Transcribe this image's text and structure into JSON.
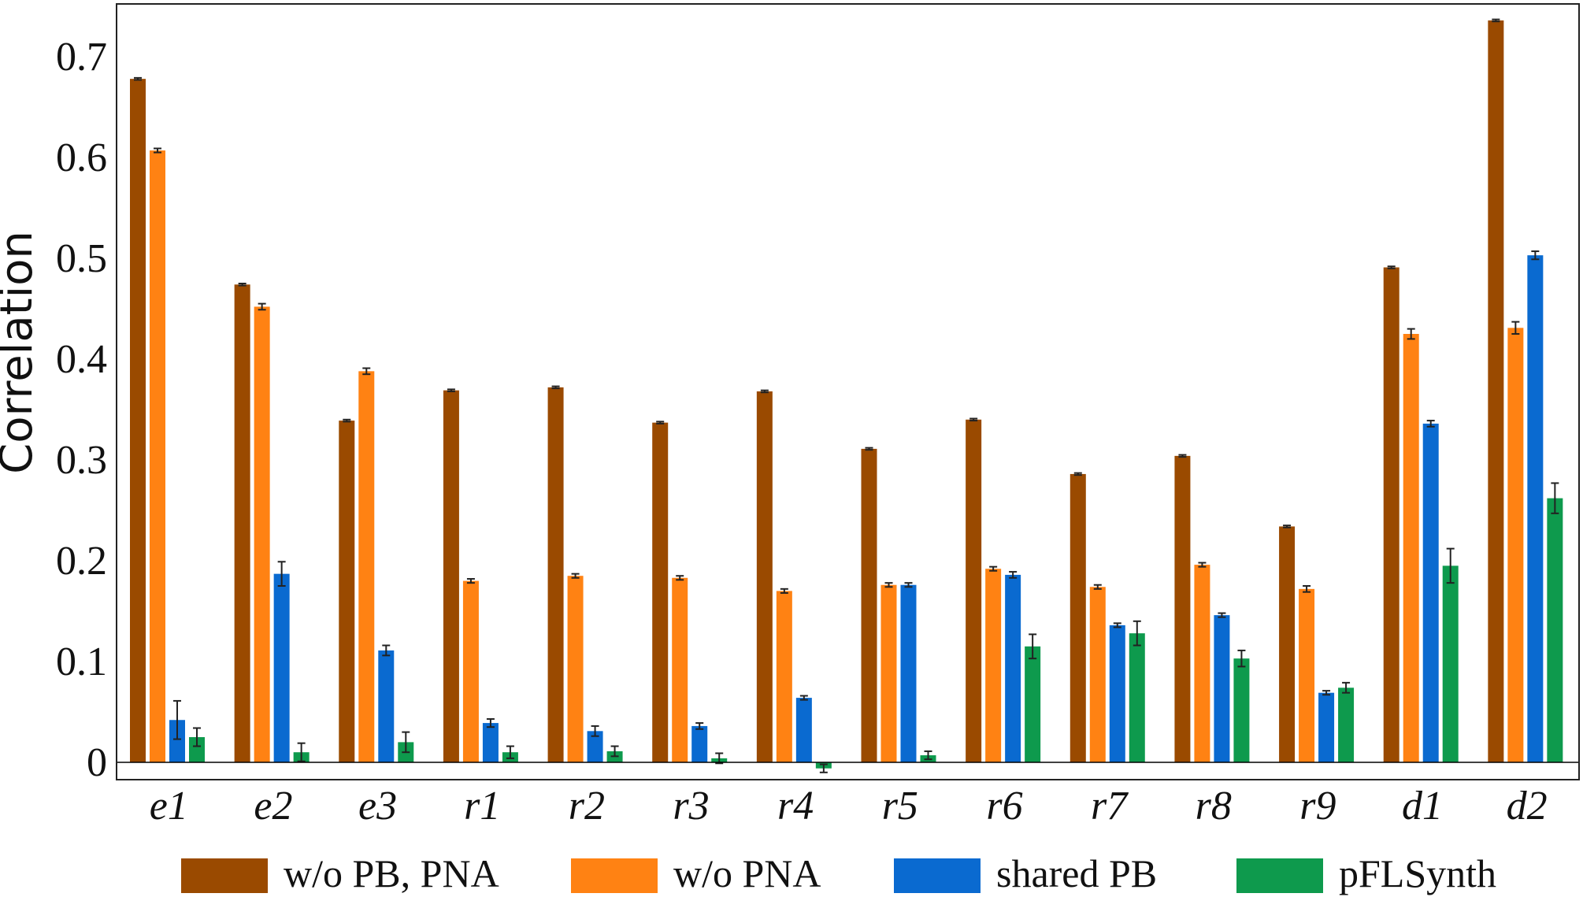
{
  "chart_data": {
    "type": "bar",
    "title": "",
    "xlabel": "",
    "ylabel": "Correlation",
    "ylim": [
      -0.02,
      0.75
    ],
    "yticks": [
      0,
      0.1,
      0.2,
      0.3,
      0.4,
      0.5,
      0.6,
      0.7
    ],
    "ytick_labels": [
      "0",
      "0.1",
      "0.2",
      "0.3",
      "0.4",
      "0.5",
      "0.6",
      "0.7"
    ],
    "grid": false,
    "legend_position": "bottom",
    "categories": [
      "e1",
      "e2",
      "e3",
      "r1",
      "r2",
      "r3",
      "r4",
      "r5",
      "r6",
      "r7",
      "r8",
      "r9",
      "d1",
      "d2"
    ],
    "series": [
      {
        "name": "w/o PB, PNA",
        "color": "#9a4a00",
        "values": [
          0.678,
          0.474,
          0.339,
          0.369,
          0.372,
          0.337,
          0.368,
          0.311,
          0.34,
          0.286,
          0.304,
          0.234,
          0.491,
          0.736
        ],
        "errors": [
          0.001,
          0.001,
          0.001,
          0.001,
          0.001,
          0.001,
          0.001,
          0.001,
          0.001,
          0.001,
          0.001,
          0.001,
          0.001,
          0.001
        ]
      },
      {
        "name": "w/o PNA",
        "color": "#ff8213",
        "values": [
          0.607,
          0.452,
          0.388,
          0.18,
          0.185,
          0.183,
          0.17,
          0.176,
          0.192,
          0.174,
          0.196,
          0.172,
          0.425,
          0.431
        ],
        "errors": [
          0.002,
          0.003,
          0.003,
          0.002,
          0.002,
          0.002,
          0.002,
          0.002,
          0.002,
          0.002,
          0.002,
          0.003,
          0.005,
          0.006
        ]
      },
      {
        "name": "shared PB",
        "color": "#0a6ad0",
        "values": [
          0.042,
          0.187,
          0.111,
          0.039,
          0.031,
          0.036,
          0.064,
          0.176,
          0.186,
          0.136,
          0.146,
          0.069,
          0.336,
          0.503
        ],
        "errors": [
          0.019,
          0.012,
          0.005,
          0.004,
          0.005,
          0.003,
          0.002,
          0.002,
          0.003,
          0.002,
          0.002,
          0.002,
          0.003,
          0.004
        ]
      },
      {
        "name": "pFLSynth",
        "color": "#0e9a4d",
        "values": [
          0.025,
          0.01,
          0.02,
          0.01,
          0.011,
          0.004,
          -0.006,
          0.007,
          0.115,
          0.128,
          0.103,
          0.074,
          0.195,
          0.262
        ],
        "errors": [
          0.009,
          0.009,
          0.01,
          0.006,
          0.005,
          0.005,
          0.004,
          0.004,
          0.012,
          0.012,
          0.008,
          0.005,
          0.017,
          0.015
        ]
      }
    ]
  }
}
